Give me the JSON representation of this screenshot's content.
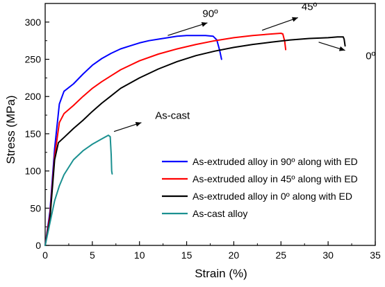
{
  "chart_data": {
    "type": "line",
    "title": "",
    "xlabel": "Strain (%)",
    "ylabel": "Stress (MPa)",
    "xlim": [
      0,
      35
    ],
    "ylim": [
      0,
      325
    ],
    "xticks": [
      0,
      5,
      10,
      15,
      20,
      25,
      30,
      35
    ],
    "yticks": [
      0,
      50,
      100,
      150,
      200,
      250,
      300
    ],
    "xtick_labels": [
      "0",
      "5",
      "10",
      "15",
      "20",
      "25",
      "30",
      "35"
    ],
    "ytick_labels": [
      "0",
      "50",
      "100",
      "150",
      "200",
      "250",
      "300"
    ],
    "grid": false,
    "legend_position": "bottom-right",
    "series": [
      {
        "name": "As-extruded alloy in 90º along with ED",
        "color": "#0000ff",
        "points": [
          [
            0,
            0
          ],
          [
            0.5,
            45
          ],
          [
            1,
            130
          ],
          [
            1.5,
            190
          ],
          [
            2,
            207
          ],
          [
            3,
            217
          ],
          [
            4,
            230
          ],
          [
            5,
            242
          ],
          [
            6,
            251
          ],
          [
            7,
            258
          ],
          [
            8,
            264
          ],
          [
            9,
            268
          ],
          [
            10,
            272
          ],
          [
            11,
            275
          ],
          [
            12,
            277
          ],
          [
            13,
            279
          ],
          [
            14,
            281
          ],
          [
            15,
            282
          ],
          [
            16,
            282
          ],
          [
            17,
            282
          ],
          [
            17.8,
            281
          ],
          [
            18.2,
            276
          ],
          [
            18.5,
            262
          ],
          [
            18.7,
            250
          ]
        ]
      },
      {
        "name": "As-extruded alloy in 45º along with ED",
        "color": "#ff0000",
        "points": [
          [
            0,
            0
          ],
          [
            0.5,
            40
          ],
          [
            1,
            120
          ],
          [
            1.5,
            165
          ],
          [
            2,
            177
          ],
          [
            3,
            188
          ],
          [
            4,
            200
          ],
          [
            5,
            211
          ],
          [
            6,
            220
          ],
          [
            7,
            228
          ],
          [
            8,
            236
          ],
          [
            10,
            248
          ],
          [
            12,
            257
          ],
          [
            14,
            264
          ],
          [
            16,
            270
          ],
          [
            18,
            275
          ],
          [
            20,
            279
          ],
          [
            22,
            282
          ],
          [
            24,
            284
          ],
          [
            25,
            285
          ],
          [
            25.2,
            284
          ],
          [
            25.4,
            274
          ],
          [
            25.5,
            263
          ]
        ]
      },
      {
        "name": "As-extruded alloy in 0º along with ED",
        "color": "#000000",
        "points": [
          [
            0,
            0
          ],
          [
            0.5,
            35
          ],
          [
            1,
            115
          ],
          [
            1.4,
            138
          ],
          [
            2,
            145
          ],
          [
            3,
            157
          ],
          [
            4,
            168
          ],
          [
            5,
            180
          ],
          [
            6,
            191
          ],
          [
            7,
            201
          ],
          [
            8,
            211
          ],
          [
            10,
            225
          ],
          [
            12,
            237
          ],
          [
            14,
            247
          ],
          [
            16,
            255
          ],
          [
            18,
            261
          ],
          [
            20,
            266
          ],
          [
            22,
            270
          ],
          [
            24,
            273
          ],
          [
            26,
            276
          ],
          [
            28,
            278
          ],
          [
            30,
            279
          ],
          [
            31,
            280
          ],
          [
            31.6,
            280
          ],
          [
            31.7,
            277
          ],
          [
            31.8,
            268
          ]
        ]
      },
      {
        "name": "As-cast alloy",
        "color": "#1a9090",
        "points": [
          [
            0,
            0
          ],
          [
            0.5,
            30
          ],
          [
            1,
            60
          ],
          [
            1.5,
            80
          ],
          [
            2,
            95
          ],
          [
            3,
            115
          ],
          [
            4,
            127
          ],
          [
            5,
            136
          ],
          [
            6,
            143
          ],
          [
            6.7,
            148
          ],
          [
            6.9,
            146
          ],
          [
            7,
            122
          ],
          [
            7.05,
            100
          ],
          [
            7.1,
            96
          ]
        ]
      }
    ],
    "annotations": [
      {
        "text": "90º",
        "x": 17.5,
        "y": 307
      },
      {
        "text": "45º",
        "x": 28,
        "y": 316
      },
      {
        "text": "0º",
        "x": 34.5,
        "y": 250
      },
      {
        "text": "As-cast",
        "x": 13.5,
        "y": 170
      }
    ],
    "arrows": [
      {
        "from": [
          13,
          282
        ],
        "to": [
          17.2,
          299
        ]
      },
      {
        "from": [
          23,
          289
        ],
        "to": [
          26.8,
          306
        ]
      },
      {
        "from": [
          29,
          273
        ],
        "to": [
          31.8,
          262
        ]
      },
      {
        "from": [
          7.3,
          153
        ],
        "to": [
          10.2,
          165
        ]
      }
    ]
  }
}
